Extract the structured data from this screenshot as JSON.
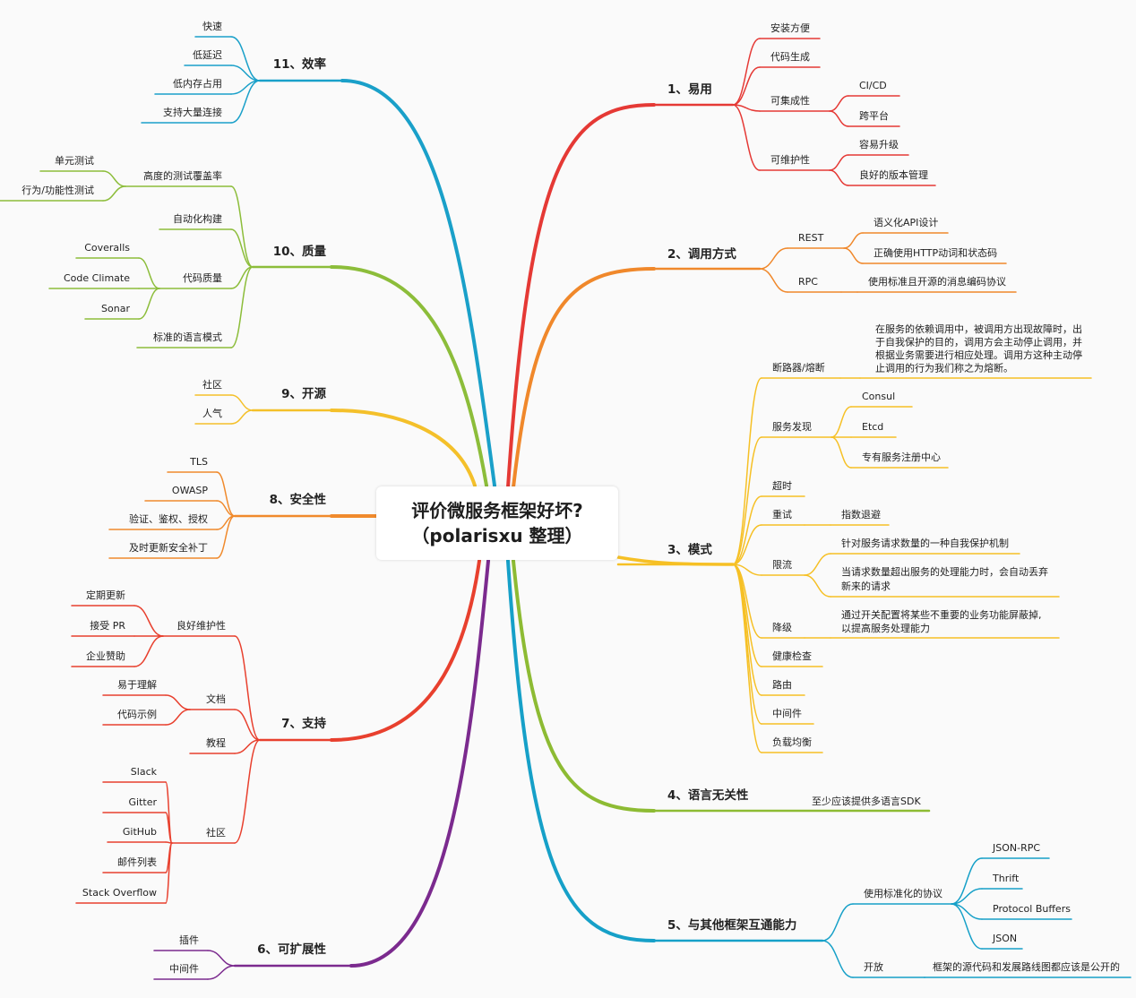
{
  "center": {
    "line1": "评价微服务框架好坏?",
    "line2": "（polarisxu 整理）"
  },
  "colors": {
    "red": "#e53935",
    "orange": "#f0882b",
    "yellow": "#f6c025",
    "green": "#8dbb33",
    "blue": "#16a0c8",
    "purple": "#7b2a8e",
    "red2": "#e8402e",
    "orange2": "#f08a2c",
    "yellow2": "#f4c02a",
    "green2": "#8cbd3a",
    "blue2": "#1aa0c9"
  },
  "branches": [
    {
      "id": "b1",
      "label": "1、易用",
      "children": [
        {
          "label": "安装方便"
        },
        {
          "label": "代码生成"
        },
        {
          "label": "可集成性",
          "children": [
            {
              "label": "CI/CD"
            },
            {
              "label": "跨平台"
            }
          ]
        },
        {
          "label": "可维护性",
          "children": [
            {
              "label": "容易升级"
            },
            {
              "label": "良好的版本管理"
            }
          ]
        }
      ]
    },
    {
      "id": "b2",
      "label": "2、调用方式",
      "children": [
        {
          "label": "REST",
          "children": [
            {
              "label": "语义化API设计"
            },
            {
              "label": "正确使用HTTP动词和状态码"
            }
          ]
        },
        {
          "label": "RPC",
          "children": [
            {
              "label": "使用标准且开源的消息编码协议"
            }
          ]
        }
      ]
    },
    {
      "id": "b3",
      "label": "3、模式",
      "children": [
        {
          "label": "断路器/熔断",
          "children": [
            {
              "lines": [
                "在服务的依赖调用中，被调用方出现故障时，出",
                "于自我保护的目的，调用方会主动停止调用，并",
                "根据业务需要进行相应处理。调用方这种主动停",
                "止调用的行为我们称之为熔断。"
              ]
            }
          ]
        },
        {
          "label": "服务发现",
          "children": [
            {
              "label": "Consul"
            },
            {
              "label": "Etcd"
            },
            {
              "label": "专有服务注册中心"
            }
          ]
        },
        {
          "label": "超时"
        },
        {
          "label": "重试",
          "children": [
            {
              "label": "指数退避"
            }
          ]
        },
        {
          "label": "限流",
          "children": [
            {
              "lines": [
                "针对服务请求数量的一种自我保护机制"
              ]
            },
            {
              "lines": [
                "当请求数量超出服务的处理能力时，会自动丢弃",
                "新来的请求"
              ]
            }
          ]
        },
        {
          "label": "降级",
          "children": [
            {
              "lines": [
                "通过开关配置将某些不重要的业务功能屏蔽掉,",
                "以提高服务处理能力"
              ]
            }
          ]
        },
        {
          "label": "健康检查"
        },
        {
          "label": "路由"
        },
        {
          "label": "中间件"
        },
        {
          "label": "负载均衡"
        }
      ]
    },
    {
      "id": "b4",
      "label": "4、语言无关性",
      "children": [
        {
          "label": "至少应该提供多语言SDK"
        }
      ]
    },
    {
      "id": "b5",
      "label": "5、与其他框架互通能力",
      "children": [
        {
          "label": "使用标准化的协议",
          "children": [
            {
              "label": "JSON-RPC"
            },
            {
              "label": "Thrift"
            },
            {
              "label": "Protocol Buffers"
            },
            {
              "label": "JSON"
            }
          ]
        },
        {
          "label": "开放",
          "children": [
            {
              "label": "框架的源代码和发展路线图都应该是公开的"
            }
          ]
        }
      ]
    },
    {
      "id": "b6",
      "label": "6、可扩展性",
      "children": [
        {
          "label": "插件"
        },
        {
          "label": "中间件"
        }
      ]
    },
    {
      "id": "b7",
      "label": "7、支持",
      "children": [
        {
          "label": "良好维护性",
          "children": [
            {
              "label": "定期更新"
            },
            {
              "label": "接受 PR"
            },
            {
              "label": "企业赞助"
            }
          ]
        },
        {
          "label": "文档",
          "children": [
            {
              "label": "易于理解"
            },
            {
              "label": "代码示例"
            }
          ]
        },
        {
          "label": "教程"
        },
        {
          "label": "社区",
          "children": [
            {
              "label": "Slack"
            },
            {
              "label": "Gitter"
            },
            {
              "label": "GitHub"
            },
            {
              "label": "邮件列表"
            },
            {
              "label": "Stack Overflow"
            }
          ]
        }
      ]
    },
    {
      "id": "b8",
      "label": "8、安全性",
      "children": [
        {
          "label": "TLS"
        },
        {
          "label": "OWASP"
        },
        {
          "label": "验证、鉴权、授权"
        },
        {
          "label": "及时更新安全补丁"
        }
      ]
    },
    {
      "id": "b9",
      "label": "9、开源",
      "children": [
        {
          "label": "社区"
        },
        {
          "label": "人气"
        }
      ]
    },
    {
      "id": "b10",
      "label": "10、质量",
      "children": [
        {
          "label": "高度的测试覆盖率",
          "children": [
            {
              "label": "单元测试"
            },
            {
              "label": "行为/功能性测试"
            }
          ]
        },
        {
          "label": "自动化构建"
        },
        {
          "label": "代码质量",
          "children": [
            {
              "label": "Coveralls"
            },
            {
              "label": "Code Climate"
            },
            {
              "label": "Sonar"
            }
          ]
        },
        {
          "label": "标准的语言模式"
        }
      ]
    },
    {
      "id": "b11",
      "label": "11、效率",
      "children": [
        {
          "label": "快速"
        },
        {
          "label": "低延迟"
        },
        {
          "label": "低内存占用"
        },
        {
          "label": "支持大量连接"
        }
      ]
    }
  ]
}
